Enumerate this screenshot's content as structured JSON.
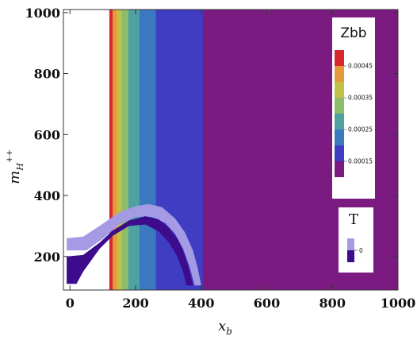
{
  "chart_data": {
    "type": "contour",
    "xlabel": "x",
    "xlabel_sub": "b",
    "ylabel": "m",
    "ylabel_sub": "H",
    "ylabel_sup": "++",
    "xlim": [
      -20,
      1000
    ],
    "ylim": [
      90,
      1010
    ],
    "x_ticks": [
      0,
      200,
      400,
      600,
      800,
      1000
    ],
    "y_ticks": [
      200,
      400,
      600,
      800,
      1000
    ],
    "zbb": {
      "legend_title": "Zbb",
      "legend_ticks": [
        "0.00045",
        "0.00035",
        "0.00025",
        "0.00015"
      ],
      "legend_tick_values": [
        0.00045,
        0.00035,
        0.00025,
        0.00015
      ],
      "legend_colors": [
        "#d7282d",
        "#e49a3c",
        "#c3c04a",
        "#8dbd6a",
        "#4fa1a3",
        "#3a78c0",
        "#3f3dc2",
        "#7b1b82"
      ],
      "x_min_region": 120,
      "bands": [
        {
          "x_from": 120,
          "x_to": 130,
          "color": "#d7282d"
        },
        {
          "x_from": 130,
          "x_to": 143,
          "color": "#e49a3c"
        },
        {
          "x_from": 143,
          "x_to": 158,
          "color": "#c3c04a"
        },
        {
          "x_from": 158,
          "x_to": 178,
          "color": "#8dbd6a"
        },
        {
          "x_from": 178,
          "x_to": 212,
          "color": "#4fa1a3"
        },
        {
          "x_from": 212,
          "x_to": 262,
          "color": "#3a78c0"
        },
        {
          "x_from": 262,
          "x_to": 405,
          "color": "#3f3dc2"
        },
        {
          "x_from": 405,
          "x_to": 1000,
          "color": "#7b1b82"
        }
      ]
    },
    "t": {
      "legend_title": "T",
      "legend_ticks": [
        "0"
      ],
      "legend_colors": [
        "#a49be4",
        "#3c0c8c"
      ],
      "outer_region_light": {
        "color": "#a49be4",
        "points": [
          [
            -10,
            260
          ],
          [
            40,
            265
          ],
          [
            90,
            300
          ],
          [
            150,
            345
          ],
          [
            200,
            365
          ],
          [
            240,
            372
          ],
          [
            280,
            362
          ],
          [
            320,
            325
          ],
          [
            350,
            280
          ],
          [
            375,
            220
          ],
          [
            390,
            160
          ],
          [
            400,
            105
          ],
          [
            380,
            105
          ],
          [
            365,
            165
          ],
          [
            345,
            225
          ],
          [
            320,
            275
          ],
          [
            290,
            310
          ],
          [
            250,
            330
          ],
          [
            200,
            330
          ],
          [
            150,
            305
          ],
          [
            100,
            258
          ],
          [
            50,
            220
          ],
          [
            -10,
            220
          ]
        ]
      },
      "inner_region_dark": {
        "color": "#3c0c8c",
        "points": [
          [
            -10,
            200
          ],
          [
            40,
            205
          ],
          [
            90,
            245
          ],
          [
            130,
            285
          ],
          [
            180,
            318
          ],
          [
            230,
            332
          ],
          [
            270,
            322
          ],
          [
            300,
            295
          ],
          [
            330,
            255
          ],
          [
            350,
            205
          ],
          [
            365,
            150
          ],
          [
            375,
            105
          ],
          [
            355,
            105
          ],
          [
            345,
            150
          ],
          [
            325,
            205
          ],
          [
            300,
            248
          ],
          [
            270,
            282
          ],
          [
            230,
            305
          ],
          [
            180,
            300
          ],
          [
            130,
            268
          ],
          [
            90,
            225
          ],
          [
            40,
            150
          ],
          [
            20,
            110
          ],
          [
            -10,
            110
          ]
        ]
      }
    }
  }
}
